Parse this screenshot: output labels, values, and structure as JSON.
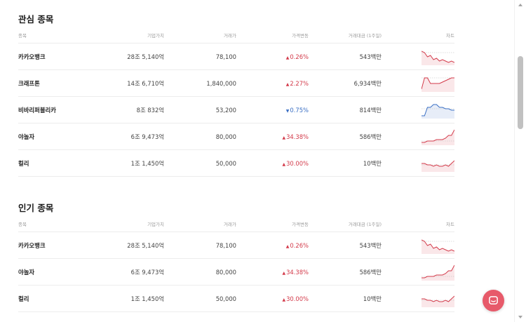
{
  "columns": {
    "name": "종목",
    "cap": "기업가치",
    "price": "거래가",
    "change": "가격변동",
    "volume": "거래대금 (1주일)",
    "chart": "차트"
  },
  "colors": {
    "up": "#d33a4a",
    "down": "#3a6fc4",
    "chat": "#e75a6a"
  },
  "watchlist": {
    "title": "관심 종목",
    "rows": [
      {
        "name": "카카오뱅크",
        "cap": "28조 5,140억",
        "price": "78,100",
        "change": "0.26%",
        "dir": "up",
        "volume": "543백만",
        "spark": [
          9,
          8,
          5,
          6,
          3,
          4,
          2,
          3,
          2,
          1,
          2,
          1
        ],
        "base": 8
      },
      {
        "name": "크래프톤",
        "cap": "14조 6,710억",
        "price": "1,840,000",
        "change": "2.27%",
        "dir": "up",
        "volume": "6,934백만",
        "spark": [
          1,
          9,
          9,
          5,
          5,
          5,
          5,
          6,
          7,
          8,
          9,
          9
        ],
        "base": 9
      },
      {
        "name": "비바리퍼블리카",
        "cap": "8조 832억",
        "price": "53,200",
        "change": "0.75%",
        "dir": "down",
        "volume": "814백만",
        "spark": [
          1,
          1,
          7,
          7,
          9,
          9,
          7,
          7,
          6,
          6,
          5,
          5
        ],
        "base": 6
      },
      {
        "name": "야놀자",
        "cap": "6조 9,473억",
        "price": "80,000",
        "change": "34.38%",
        "dir": "up",
        "volume": "586백만",
        "spark": [
          1,
          1,
          2,
          2,
          2,
          3,
          3,
          3,
          4,
          6,
          6,
          10
        ],
        "base": 2
      },
      {
        "name": "컬리",
        "cap": "1조 1,450억",
        "price": "50,000",
        "change": "30.00%",
        "dir": "up",
        "volume": "10백만",
        "spark": [
          5,
          5,
          4,
          4,
          3,
          4,
          3,
          3,
          4,
          3,
          5,
          7
        ],
        "base": 4
      }
    ]
  },
  "popular": {
    "title": "인기 종목",
    "rows": [
      {
        "name": "카카오뱅크",
        "cap": "28조 5,140억",
        "price": "78,100",
        "change": "0.26%",
        "dir": "up",
        "volume": "543백만",
        "spark": [
          9,
          8,
          5,
          6,
          3,
          4,
          2,
          3,
          2,
          1,
          2,
          1
        ],
        "base": 8
      },
      {
        "name": "야놀자",
        "cap": "6조 9,473억",
        "price": "80,000",
        "change": "34.38%",
        "dir": "up",
        "volume": "586백만",
        "spark": [
          1,
          1,
          2,
          2,
          2,
          3,
          3,
          3,
          4,
          6,
          6,
          10
        ],
        "base": 2
      },
      {
        "name": "컬리",
        "cap": "1조 1,450억",
        "price": "50,000",
        "change": "30.00%",
        "dir": "up",
        "volume": "10백만",
        "spark": [
          5,
          5,
          4,
          4,
          3,
          4,
          3,
          3,
          4,
          3,
          5,
          7
        ],
        "base": 4
      }
    ]
  }
}
